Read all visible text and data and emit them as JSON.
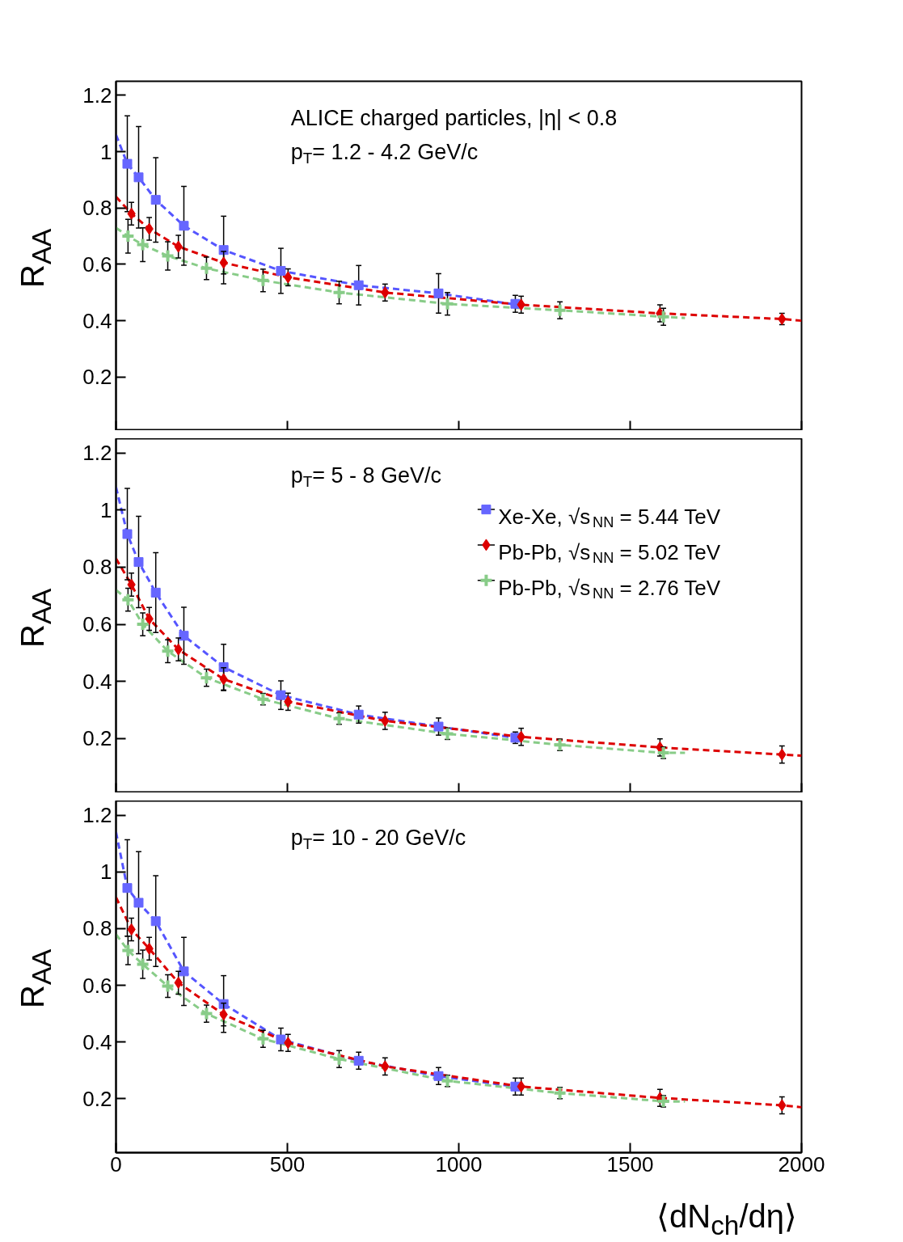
{
  "chart_data": [
    {
      "type": "scatter",
      "ylabel": "R$_{AA}$",
      "xlim": [
        0,
        2000
      ],
      "xticks": [
        0,
        500,
        1000,
        1500,
        2000
      ],
      "ylim": [
        0.01,
        1.25
      ],
      "yticks": [
        0.2,
        0.4,
        0.6,
        0.8,
        1,
        1.2
      ],
      "tick_labels": "y",
      "grid": false,
      "legend": false,
      "annotations": [
        "ALICE charged particles, |η| < 0.8",
        "p$_{T}$= 1.2 - 4.2 GeV/c"
      ],
      "series": [
        {
          "type": "line",
          "color": "#5555ff",
          "line_style": "dashed",
          "marker": "none",
          "x": [
            0,
            33,
            66,
            116,
            198,
            314,
            481,
            708,
            941,
            1180
          ],
          "values": [
            1.06,
            0.957,
            0.909,
            0.829,
            0.737,
            0.651,
            0.577,
            0.526,
            0.497,
            0.455
          ]
        },
        {
          "type": "line",
          "color": "#dd0000",
          "line_style": "dashed",
          "marker": "none",
          "x": [
            0,
            45,
            97,
            182,
            314,
            502,
            785,
            1182,
            1587,
            1943,
            2000
          ],
          "values": [
            0.84,
            0.78,
            0.726,
            0.663,
            0.606,
            0.554,
            0.5,
            0.457,
            0.426,
            0.406,
            0.4
          ]
        },
        {
          "type": "line",
          "color": "#88cc88",
          "line_style": "dashed",
          "marker": "none",
          "x": [
            0,
            35,
            78,
            151,
            264,
            429,
            651,
            967,
            1295,
            1597,
            1660
          ],
          "values": [
            0.73,
            0.7,
            0.67,
            0.63,
            0.586,
            0.543,
            0.5,
            0.46,
            0.437,
            0.414,
            0.41
          ]
        },
        {
          "color": "#6666ff",
          "marker": "square",
          "x": [
            33,
            66,
            116,
            198,
            314,
            481,
            708,
            941,
            1165
          ],
          "values": [
            0.957,
            0.909,
            0.829,
            0.737,
            0.651,
            0.577,
            0.526,
            0.497,
            0.46
          ],
          "errors": [
            0.17,
            0.18,
            0.15,
            0.14,
            0.12,
            0.08,
            0.07,
            0.07,
            0.03
          ]
        },
        {
          "color": "#dd0000",
          "marker": "diamond",
          "x": [
            45,
            97,
            182,
            314,
            502,
            785,
            1182,
            1587,
            1943
          ],
          "values": [
            0.78,
            0.726,
            0.663,
            0.606,
            0.554,
            0.5,
            0.457,
            0.426,
            0.406
          ],
          "errors": [
            0.04,
            0.04,
            0.04,
            0.04,
            0.03,
            0.03,
            0.03,
            0.03,
            0.02
          ]
        },
        {
          "color": "#88cc88",
          "marker": "cross",
          "x": [
            35,
            78,
            151,
            264,
            429,
            651,
            967,
            1295,
            1597
          ],
          "values": [
            0.7,
            0.67,
            0.63,
            0.586,
            0.543,
            0.5,
            0.46,
            0.437,
            0.414
          ],
          "errors": [
            0.06,
            0.06,
            0.05,
            0.04,
            0.04,
            0.04,
            0.04,
            0.03,
            0.03
          ]
        }
      ]
    },
    {
      "type": "scatter",
      "ylabel": "R$_{AA}$",
      "xlim": [
        0,
        2000
      ],
      "xticks": [
        0,
        500,
        1000,
        1500,
        2000
      ],
      "ylim": [
        0.01,
        1.25
      ],
      "yticks": [
        0.2,
        0.4,
        0.6,
        0.8,
        1,
        1.2
      ],
      "tick_labels": "y",
      "grid": false,
      "legend": "top right",
      "annotations": [
        "p$_{T}$= 5 - 8 GeV/c"
      ],
      "series": [
        {
          "type": "line",
          "color": "#5555ff",
          "line_style": "dashed",
          "marker": "none",
          "x": [
            0,
            33,
            66,
            116,
            198,
            314,
            481,
            708,
            941,
            1180
          ],
          "values": [
            1.08,
            0.916,
            0.818,
            0.711,
            0.56,
            0.45,
            0.352,
            0.284,
            0.242,
            0.2
          ]
        },
        {
          "type": "line",
          "color": "#dd0000",
          "line_style": "dashed",
          "marker": "none",
          "x": [
            0,
            45,
            97,
            182,
            314,
            502,
            785,
            1182,
            1587,
            1943,
            2000
          ],
          "values": [
            0.83,
            0.739,
            0.619,
            0.512,
            0.408,
            0.329,
            0.262,
            0.206,
            0.169,
            0.144,
            0.14
          ]
        },
        {
          "type": "line",
          "color": "#88cc88",
          "line_style": "dashed",
          "marker": "none",
          "x": [
            0,
            35,
            78,
            151,
            264,
            429,
            651,
            967,
            1295,
            1597,
            1660
          ],
          "values": [
            0.72,
            0.686,
            0.6,
            0.506,
            0.413,
            0.338,
            0.27,
            0.217,
            0.178,
            0.15,
            0.15
          ]
        },
        {
          "name": "Xe-Xe, √s$_{NN}$ = 5.44 TeV",
          "color": "#6666ff",
          "marker": "square",
          "x": [
            33,
            66,
            116,
            198,
            314,
            481,
            708,
            941,
            1165
          ],
          "values": [
            0.916,
            0.818,
            0.711,
            0.56,
            0.45,
            0.352,
            0.284,
            0.242,
            0.203
          ],
          "errors": [
            0.16,
            0.16,
            0.14,
            0.1,
            0.08,
            0.05,
            0.03,
            0.03,
            0.02
          ]
        },
        {
          "name": "Pb-Pb, √s$_{NN}$ = 5.02 TeV",
          "color": "#dd0000",
          "marker": "diamond",
          "x": [
            45,
            97,
            182,
            314,
            502,
            785,
            1182,
            1587,
            1943
          ],
          "values": [
            0.739,
            0.619,
            0.512,
            0.408,
            0.329,
            0.262,
            0.206,
            0.169,
            0.144
          ],
          "errors": [
            0.04,
            0.04,
            0.04,
            0.04,
            0.03,
            0.03,
            0.03,
            0.03,
            0.03
          ]
        },
        {
          "name": "Pb-Pb, √s$_{NN}$ = 2.76 TeV",
          "color": "#88cc88",
          "marker": "cross",
          "x": [
            35,
            78,
            151,
            264,
            429,
            651,
            967,
            1295,
            1597
          ],
          "values": [
            0.686,
            0.6,
            0.506,
            0.413,
            0.338,
            0.27,
            0.217,
            0.178,
            0.15
          ],
          "errors": [
            0.04,
            0.04,
            0.04,
            0.03,
            0.02,
            0.02,
            0.02,
            0.02,
            0.02
          ]
        }
      ]
    },
    {
      "type": "scatter",
      "ylabel": "R$_{AA}$",
      "xlabel": "⟨dN$_{ch}$/dη⟩",
      "xlim": [
        0,
        2000
      ],
      "xticks": [
        0,
        500,
        1000,
        1500,
        2000
      ],
      "ylim": [
        0.01,
        1.25
      ],
      "yticks": [
        0.2,
        0.4,
        0.6,
        0.8,
        1,
        1.2
      ],
      "grid": false,
      "legend": false,
      "annotations": [
        "p$_{T}$= 10 - 20 GeV/c"
      ],
      "series": [
        {
          "type": "line",
          "color": "#5555ff",
          "line_style": "dashed",
          "marker": "none",
          "x": [
            0,
            33,
            66,
            116,
            198,
            314,
            481,
            708,
            941,
            1180
          ],
          "values": [
            1.14,
            0.943,
            0.891,
            0.826,
            0.649,
            0.534,
            0.409,
            0.334,
            0.28,
            0.24
          ]
        },
        {
          "type": "line",
          "color": "#dd0000",
          "line_style": "dashed",
          "marker": "none",
          "x": [
            0,
            45,
            97,
            182,
            314,
            502,
            785,
            1182,
            1587,
            1943,
            2000
          ],
          "values": [
            0.91,
            0.797,
            0.729,
            0.609,
            0.497,
            0.397,
            0.314,
            0.243,
            0.203,
            0.177,
            0.17
          ]
        },
        {
          "type": "line",
          "color": "#88cc88",
          "line_style": "dashed",
          "marker": "none",
          "x": [
            0,
            35,
            78,
            151,
            264,
            429,
            651,
            967,
            1295,
            1597,
            1660
          ],
          "values": [
            0.78,
            0.723,
            0.674,
            0.597,
            0.5,
            0.411,
            0.34,
            0.263,
            0.22,
            0.191,
            0.19
          ]
        },
        {
          "color": "#6666ff",
          "marker": "square",
          "x": [
            33,
            66,
            116,
            198,
            314,
            481,
            708,
            941,
            1165
          ],
          "values": [
            0.943,
            0.891,
            0.826,
            0.649,
            0.534,
            0.409,
            0.334,
            0.28,
            0.243
          ],
          "errors": [
            0.17,
            0.18,
            0.16,
            0.12,
            0.1,
            0.04,
            0.03,
            0.03,
            0.03
          ]
        },
        {
          "color": "#dd0000",
          "marker": "diamond",
          "x": [
            45,
            97,
            182,
            314,
            502,
            785,
            1182,
            1587,
            1943
          ],
          "values": [
            0.797,
            0.729,
            0.609,
            0.497,
            0.397,
            0.314,
            0.243,
            0.203,
            0.177
          ],
          "errors": [
            0.04,
            0.04,
            0.04,
            0.04,
            0.03,
            0.03,
            0.03,
            0.03,
            0.03
          ]
        },
        {
          "color": "#88cc88",
          "marker": "cross",
          "x": [
            35,
            78,
            151,
            264,
            429,
            651,
            967,
            1295,
            1597
          ],
          "values": [
            0.723,
            0.674,
            0.597,
            0.5,
            0.411,
            0.34,
            0.263,
            0.22,
            0.191
          ],
          "errors": [
            0.05,
            0.05,
            0.04,
            0.03,
            0.03,
            0.03,
            0.02,
            0.02,
            0.02
          ]
        }
      ]
    }
  ]
}
